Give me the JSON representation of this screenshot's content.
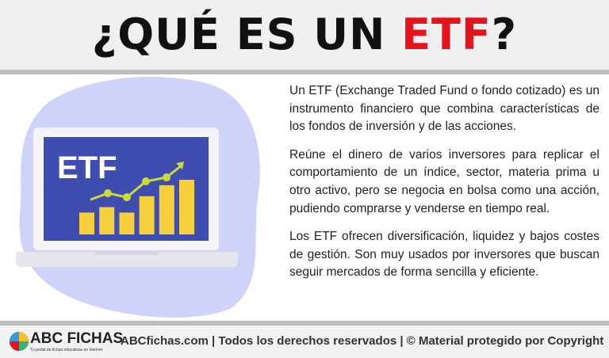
{
  "header": {
    "title_prefix": "¿QUÉ ES UN ",
    "title_highlight": "ETF",
    "title_suffix": "?",
    "highlight_color": "#e3141b"
  },
  "illustration": {
    "screen_label": "ETF",
    "bar_levels": [
      2,
      2.5,
      2,
      3.5,
      4.5,
      5
    ]
  },
  "body": {
    "paragraphs": [
      "Un ETF (Exchange Traded Fund o fondo cotizado) es un instrumento financiero que combina características de los fondos de inversión y de las acciones.",
      "Reúne el dinero de varios inversores para replicar el comportamiento de un índice, sector, materia prima u otro activo, pero se negocia en bolsa como una acción, pudiendo comprarse y venderse en tiempo real.",
      "Los ETF ofrecen diversificación, liquidez y bajos costes de gestión. Son muy usados por inversores que buscan seguir mercados de forma sencilla y eficiente."
    ]
  },
  "footer": {
    "brand": "ABC FICHAS",
    "tagline": "Tu portal de fichas educativas en internet",
    "text": "ABCfichas.com | Todos los derechos reservados | © Material protegido por Copyright"
  }
}
